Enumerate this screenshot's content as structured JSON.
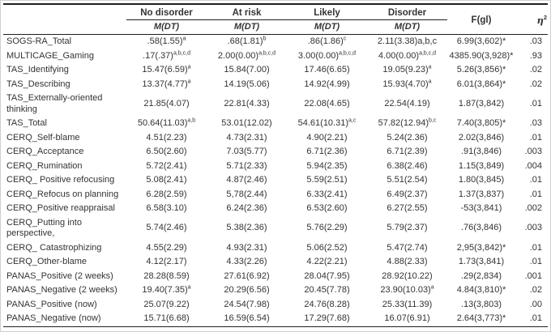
{
  "colors": {
    "text": "#333333",
    "rule": "#1f1f1f",
    "frame": "#cfcfcf",
    "background": "#ffffff"
  },
  "table": {
    "group_headers": [
      "No disorder",
      "At risk",
      "Likely",
      "Disorder"
    ],
    "subheader": "M(DT)",
    "f_header": "F(gl)",
    "eta_header": {
      "base": "η",
      "sup": "2"
    },
    "rows": [
      {
        "label": "SOGS-RA_Total",
        "values": [
          ".58(1.55)^{a}",
          ".68(1.81)^{b}",
          ".86(1.86)^{c}",
          "2.11(3.38)a,b,c"
        ],
        "f": "6.99(3,602)*",
        "eta": ".03"
      },
      {
        "label": "MULTICAGE_Gaming",
        "values": [
          ".17(.37)^{a,b,c,d}",
          "2.00(0.00)^{a,b,c,d}",
          "3.00(0.00)^{a,b,c,d}",
          "4.00(0.00)^{a,b,c,d}"
        ],
        "f": "4385.90(3,928)*",
        "eta": ".93"
      },
      {
        "label": "TAS_Identifying",
        "values": [
          "15.47(6.59)^{a}",
          "15.84(7.00)",
          "17.46(6.65)",
          "19.05(9.23)^{a}"
        ],
        "f": "5.26(3,856)*",
        "eta": ".02"
      },
      {
        "label": "TAS_Describing",
        "values": [
          "13.37(4.77)^{a}",
          "14.19(5.06)",
          "14.92(4.99)",
          "15.93(4.70)^{a}"
        ],
        "f": "6.01(3,864)*",
        "eta": ".02"
      },
      {
        "label": "TAS_Externally-oriented thinking",
        "values": [
          "21.85(4.07)",
          "22.81(4.33)",
          "22.08(4.65)",
          "22.54(4.19)"
        ],
        "f": "1.87(3,842)",
        "eta": ".01"
      },
      {
        "label": "TAS_Total",
        "values": [
          "50.64(11.03)^{a,b}",
          "53.01(12.02)",
          "54.61(10.31)^{a,c}",
          "57.82(12.94)^{b,c}"
        ],
        "f": "7.40(3,805)*",
        "eta": ".03"
      },
      {
        "label": "CERQ_Self-blame",
        "values": [
          "4.51(2.23)",
          "4.73(2.31)",
          "4.90(2.21)",
          "5.24(2.36)"
        ],
        "f": "2.02(3,846)",
        "eta": ".01"
      },
      {
        "label": "CERQ_Acceptance",
        "values": [
          "6.50(2.60)",
          "7.03(5.77)",
          "6.71(2.36)",
          "6.71(2.39)"
        ],
        "f": ".91(3,846)",
        "eta": ".003"
      },
      {
        "label": "CERQ_Rumination",
        "values": [
          "5.72(2.41)",
          "5.71(2.33)",
          "5.94(2.35)",
          "6.38(2.46)"
        ],
        "f": "1.15(3,849)",
        "eta": ".004"
      },
      {
        "label": "CERQ_ Positive refocusing",
        "values": [
          "5.08(2.41)",
          "4.87(2.46)",
          "5.59(2.51)",
          "5.51(2.54)"
        ],
        "f": "1.80(3,845)",
        "eta": ".01"
      },
      {
        "label": "CERQ_Refocus on planning",
        "values": [
          "6.28(2.59)",
          "5,78(2.44)",
          "6.33(2.41)",
          "6.49(2.37)"
        ],
        "f": "1.37(3,837)",
        "eta": ".01"
      },
      {
        "label": "CERQ_Positive reappraisal",
        "values": [
          "6.58(3.10)",
          "6.24(2.36)",
          "6.53(2.60)",
          "6.27(2.55)"
        ],
        "f": "-53(3,841)",
        "eta": ".002"
      },
      {
        "label": "CERQ_Putting into perspective,",
        "values": [
          "5.74(2.46)",
          "5.38(2.36)",
          "5.76(2.29)",
          "5.79(2.37)"
        ],
        "f": ".76(3,846)",
        "eta": ".003"
      },
      {
        "label": "CERQ_ Catastrophizing",
        "values": [
          "4.55(2.29)",
          "4.93(2.31)",
          "5.06(2.52)",
          "5.47(2.74)"
        ],
        "f": "2,95(3,842)*",
        "eta": ".01"
      },
      {
        "label": "CERQ_Other-blame",
        "values": [
          "4.12(2.17)",
          "4.33(2.26)",
          "4.22(2.21)",
          "4.88(2.33)"
        ],
        "f": "1.73(3,841)",
        "eta": ".01"
      },
      {
        "label": "PANAS_Positive (2 weeks)",
        "values": [
          "28.28(8.59)",
          "27.61(6.92)",
          "28.04(7.95)",
          "28.92(10.22)"
        ],
        "f": ".29(2,834)",
        "eta": ".001"
      },
      {
        "label": "PANAS_Negative (2 weeks)",
        "values": [
          "19.40(7.35)^{a}",
          "20.29(6.56)",
          "20.45(7.78)",
          "23.90(10.03)^{a}"
        ],
        "f": "4.84(3,810)*",
        "eta": ".02"
      },
      {
        "label": "PANAS_Positive (now)",
        "values": [
          "25.07(9.22)",
          "24.54(7.98)",
          "24.76(8.28)",
          "25.33(11.39)"
        ],
        "f": ".13(3,803)",
        "eta": ".00"
      },
      {
        "label": "PANAS_Negative (now)",
        "values": [
          "15.71(6.68)",
          "16.59(6.54)",
          "17.29(7.68)",
          "16.07(6.91)"
        ],
        "f": "2.64(3,773)*",
        "eta": ".01"
      }
    ]
  }
}
